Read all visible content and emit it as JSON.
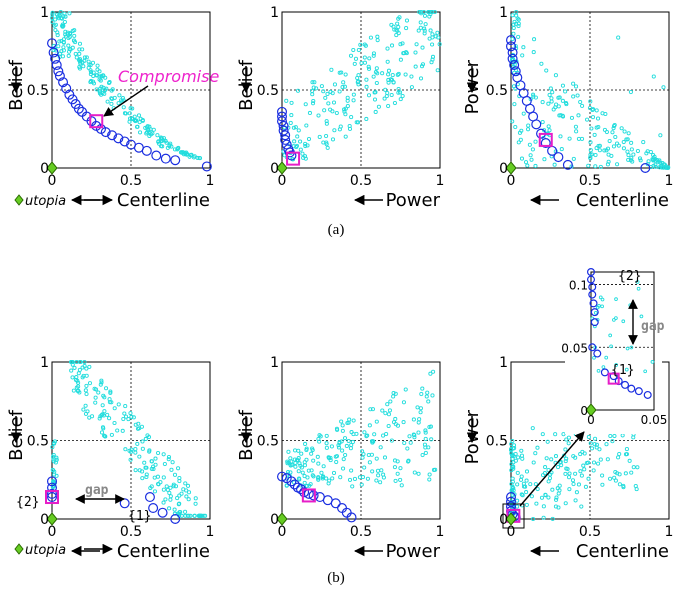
{
  "figure": {
    "caption_a": "(a)",
    "caption_b": "(b)",
    "colors": {
      "cloud": "#22dddd",
      "front": "#1a2ee0",
      "compromise": "#e61ec8",
      "utopia": "#66cc22",
      "grid": "#000000"
    },
    "annotations": {
      "compromise": "Compromise",
      "utopia": "utopia",
      "gap": "gap",
      "g1": "{1}",
      "g2": "{2}"
    }
  },
  "chart_data": [
    {
      "id": "a1",
      "type": "scatter",
      "xlabel": "Centerline",
      "ylabel": "Belief",
      "xlim": [
        0,
        1
      ],
      "ylim": [
        0,
        1
      ],
      "xticks": [
        "0",
        "0.5",
        "1"
      ],
      "yticks": [
        "0",
        "0.5",
        "1"
      ],
      "grid": true,
      "front": [
        [
          0.0,
          0.8
        ],
        [
          0.01,
          0.74
        ],
        [
          0.02,
          0.7
        ],
        [
          0.03,
          0.66
        ],
        [
          0.04,
          0.62
        ],
        [
          0.05,
          0.59
        ],
        [
          0.07,
          0.55
        ],
        [
          0.09,
          0.51
        ],
        [
          0.11,
          0.47
        ],
        [
          0.13,
          0.44
        ],
        [
          0.15,
          0.41
        ],
        [
          0.17,
          0.38
        ],
        [
          0.19,
          0.36
        ],
        [
          0.22,
          0.33
        ],
        [
          0.25,
          0.3
        ],
        [
          0.28,
          0.27
        ],
        [
          0.31,
          0.25
        ],
        [
          0.34,
          0.23
        ],
        [
          0.38,
          0.21
        ],
        [
          0.42,
          0.19
        ],
        [
          0.46,
          0.17
        ],
        [
          0.5,
          0.15
        ],
        [
          0.55,
          0.13
        ],
        [
          0.6,
          0.11
        ],
        [
          0.66,
          0.08
        ],
        [
          0.72,
          0.06
        ],
        [
          0.78,
          0.05
        ],
        [
          0.98,
          0.01
        ]
      ],
      "compromise": [
        0.28,
        0.3
      ],
      "utopia": [
        0,
        0
      ]
    },
    {
      "id": "a2",
      "type": "scatter",
      "xlabel": "Power",
      "ylabel": "Belief",
      "xlim": [
        0,
        1
      ],
      "ylim": [
        0,
        1
      ],
      "xticks": [
        "0",
        "0.5",
        "1"
      ],
      "yticks": [
        "0",
        "0.5",
        "1"
      ],
      "grid": true,
      "front": [
        [
          0.0,
          0.36
        ],
        [
          0.0,
          0.33
        ],
        [
          0.0,
          0.3
        ],
        [
          0.01,
          0.27
        ],
        [
          0.01,
          0.24
        ],
        [
          0.02,
          0.21
        ],
        [
          0.02,
          0.18
        ],
        [
          0.03,
          0.15
        ],
        [
          0.04,
          0.12
        ],
        [
          0.05,
          0.1
        ],
        [
          0.06,
          0.08
        ]
      ],
      "compromise": [
        0.07,
        0.06
      ],
      "utopia": [
        0,
        0
      ]
    },
    {
      "id": "a3",
      "type": "scatter",
      "xlabel": "Centerline",
      "ylabel": "Power",
      "xlim": [
        0,
        1
      ],
      "ylim": [
        0,
        1
      ],
      "xticks": [
        "0",
        "0.5",
        "1"
      ],
      "yticks": [
        "0",
        "0.5",
        "1"
      ],
      "grid": true,
      "front": [
        [
          0.0,
          0.82
        ],
        [
          0.0,
          0.78
        ],
        [
          0.01,
          0.74
        ],
        [
          0.01,
          0.7
        ],
        [
          0.02,
          0.66
        ],
        [
          0.03,
          0.62
        ],
        [
          0.04,
          0.58
        ],
        [
          0.06,
          0.53
        ],
        [
          0.08,
          0.48
        ],
        [
          0.1,
          0.43
        ],
        [
          0.12,
          0.38
        ],
        [
          0.14,
          0.33
        ],
        [
          0.16,
          0.28
        ],
        [
          0.19,
          0.22
        ],
        [
          0.22,
          0.16
        ],
        [
          0.26,
          0.11
        ],
        [
          0.3,
          0.07
        ],
        [
          0.36,
          0.02
        ],
        [
          0.85,
          0.0
        ]
      ],
      "compromise": [
        0.22,
        0.18
      ],
      "utopia": [
        0,
        0
      ]
    },
    {
      "id": "b1",
      "type": "scatter",
      "xlabel": "Centerline",
      "ylabel": "Belief",
      "xlim": [
        0,
        1
      ],
      "ylim": [
        0,
        1
      ],
      "xticks": [
        "0",
        "0.5",
        "1"
      ],
      "yticks": [
        "0",
        "0.5",
        "1"
      ],
      "grid": true,
      "front": [
        [
          0.0,
          0.24
        ],
        [
          0.0,
          0.2
        ],
        [
          0.0,
          0.16
        ],
        [
          0.0,
          0.14
        ],
        [
          0.46,
          0.1
        ],
        [
          0.62,
          0.14
        ],
        [
          0.64,
          0.07
        ],
        [
          0.7,
          0.04
        ],
        [
          0.78,
          0.0
        ]
      ],
      "compromise": [
        0.0,
        0.14
      ],
      "utopia": [
        0,
        0
      ]
    },
    {
      "id": "b2",
      "type": "scatter",
      "xlabel": "Power",
      "ylabel": "Belief",
      "xlim": [
        0,
        1
      ],
      "ylim": [
        0,
        1
      ],
      "xticks": [
        "0",
        "0.5",
        "1"
      ],
      "yticks": [
        "0",
        "0.5",
        "1"
      ],
      "grid": true,
      "front": [
        [
          0.0,
          0.27
        ],
        [
          0.03,
          0.26
        ],
        [
          0.06,
          0.24
        ],
        [
          0.08,
          0.22
        ],
        [
          0.1,
          0.2
        ],
        [
          0.12,
          0.19
        ],
        [
          0.14,
          0.17
        ],
        [
          0.17,
          0.16
        ],
        [
          0.2,
          0.15
        ],
        [
          0.24,
          0.14
        ],
        [
          0.29,
          0.12
        ],
        [
          0.34,
          0.1
        ],
        [
          0.38,
          0.07
        ],
        [
          0.41,
          0.04
        ],
        [
          0.44,
          0.01
        ]
      ],
      "compromise": [
        0.17,
        0.15
      ],
      "utopia": [
        0,
        0
      ]
    },
    {
      "id": "b3",
      "type": "scatter",
      "xlabel": "Centerline",
      "ylabel": "Power",
      "xlim": [
        0,
        1
      ],
      "ylim": [
        0,
        1
      ],
      "xticks": [
        "0",
        "0.5",
        "1"
      ],
      "yticks": [
        "0",
        "0.5",
        "1"
      ],
      "grid": true,
      "front": [
        [
          0.0,
          0.14
        ],
        [
          0.0,
          0.11
        ],
        [
          0.0,
          0.08
        ],
        [
          0.0,
          0.05
        ],
        [
          0.01,
          0.03
        ],
        [
          0.02,
          0.015
        ],
        [
          0.03,
          0.01
        ]
      ],
      "compromise": [
        0.015,
        0.02
      ],
      "utopia": [
        0,
        0
      ]
    },
    {
      "id": "b3inset",
      "type": "scatter",
      "xlim": [
        0,
        0.05
      ],
      "ylim": [
        0,
        0.11
      ],
      "xticks": [
        "0",
        "0.05"
      ],
      "yticks": [
        "0",
        "0.05",
        "0.1"
      ],
      "grid": true,
      "front": [
        [
          0.0,
          0.11
        ],
        [
          0.0,
          0.104
        ],
        [
          0.001,
          0.098
        ],
        [
          0.001,
          0.092
        ],
        [
          0.002,
          0.085
        ],
        [
          0.003,
          0.078
        ],
        [
          0.003,
          0.07
        ],
        [
          0.001,
          0.05
        ],
        [
          0.005,
          0.045
        ],
        [
          0.011,
          0.03
        ],
        [
          0.018,
          0.027
        ],
        [
          0.022,
          0.023
        ],
        [
          0.027,
          0.02
        ],
        [
          0.032,
          0.017
        ],
        [
          0.038,
          0.015
        ],
        [
          0.045,
          0.012
        ]
      ],
      "compromise": [
        0.018,
        0.025
      ],
      "utopia": [
        0,
        0
      ]
    }
  ]
}
